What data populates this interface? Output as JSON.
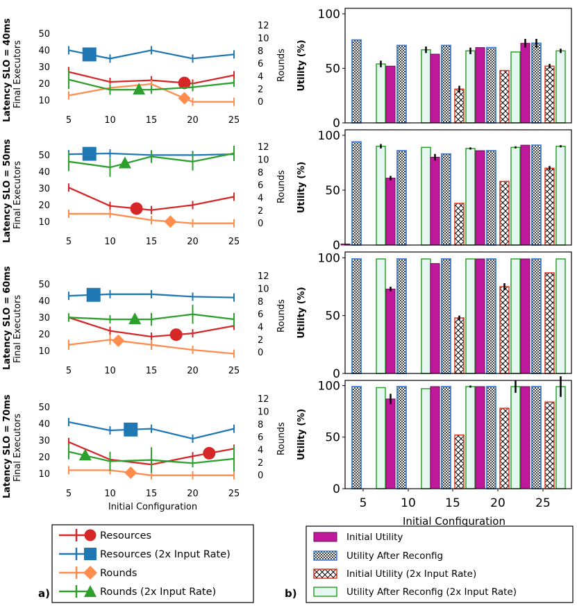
{
  "chart_data": {
    "type": "composite",
    "rows": [
      {
        "slo_label": "Latency SLO = 40ms"
      },
      {
        "slo_label": "Latency SLO = 50ms"
      },
      {
        "slo_label": "Latency SLO = 60ms"
      },
      {
        "slo_label": "Latency SLO = 70ms"
      }
    ],
    "left_panel": {
      "label": "a)",
      "type": "line",
      "x": [
        5,
        10,
        15,
        20,
        25
      ],
      "xticks": [
        "5",
        "10",
        "15",
        "20",
        "25"
      ],
      "xlabel": "Initial Configuration",
      "ylabel_left": "Final Executors",
      "ylabel_right": "Rounds",
      "ylim_left": [
        6,
        56
      ],
      "yticks_left": [
        10,
        20,
        30,
        40,
        50
      ],
      "ylim_right": [
        -0.8,
        12.3
      ],
      "yticks_right": [
        0,
        2,
        4,
        6,
        8,
        10,
        12
      ],
      "colors": {
        "resources": "#d62728",
        "resources_2x": "#1f77b4",
        "rounds": "#ff8c4d",
        "rounds_2x": "#2ca02c"
      },
      "legend": [
        "Resources",
        "Resources (2x Input Rate)",
        "Rounds",
        "Rounds (2x Input Rate)"
      ],
      "subplots": [
        {
          "resources": [
            27,
            21,
            22,
            20,
            25
          ],
          "resources_err": [
            3,
            1,
            0.5,
            0.5,
            0
          ],
          "resources_2x": [
            40,
            35,
            40,
            35,
            37.5
          ],
          "resources_2x_err": [
            1.5,
            0,
            0,
            0,
            0
          ],
          "rounds": [
            1,
            2.2,
            2.8,
            0,
            0
          ],
          "rounds_err": [
            0.6,
            0.6,
            0.5,
            0,
            0
          ],
          "rounds_2x": [
            3.5,
            1.9,
            1.9,
            2.3,
            3
          ],
          "rounds_2x_err": [
            1.5,
            0.8,
            0,
            0.6,
            0.6
          ],
          "markers": {
            "resources": 19,
            "resources_2x": 7.5,
            "rounds": 19,
            "rounds_2x": 13.5
          }
        },
        {
          "resources": [
            30.5,
            19.5,
            17,
            20,
            25
          ],
          "resources_err": [
            2,
            0,
            2,
            0,
            0
          ],
          "resources_2x": [
            50.5,
            51,
            50,
            50,
            50.5
          ],
          "resources_2x_err": [
            0,
            0.5,
            0,
            0,
            0
          ],
          "rounds": [
            1.5,
            1.5,
            0.5,
            0,
            0
          ],
          "rounds_err": [
            0.6,
            0.5,
            0.6,
            0,
            0
          ],
          "rounds_2x": [
            9.7,
            8.8,
            10.5,
            9.7,
            11
          ],
          "rounds_2x_err": [
            1.5,
            1.5,
            1,
            1.4,
            1.2
          ],
          "markers": {
            "resources": 13.2,
            "resources_2x": 7.5,
            "rounds": 17.3,
            "rounds_2x": 11.8
          }
        },
        {
          "resources": [
            30,
            22,
            18.5,
            20.5,
            25
          ],
          "resources_err": [
            0,
            0,
            0.7,
            0.7,
            0
          ],
          "resources_2x": [
            43,
            44,
            44,
            42.5,
            42
          ],
          "resources_2x_err": [
            0,
            0,
            0,
            0.5,
            0
          ],
          "rounds": [
            1.2,
            2,
            1.2,
            0.4,
            -0.2
          ],
          "rounds_err": [
            0.8,
            0.8,
            0.8,
            0.6,
            0
          ],
          "rounds_2x": [
            5.5,
            5.2,
            5.2,
            6,
            5.2
          ],
          "rounds_2x_err": [
            0,
            0.6,
            1,
            1.5,
            1
          ],
          "markers": {
            "resources": 18,
            "resources_2x": 8,
            "rounds": 11,
            "rounds_2x": 13
          }
        },
        {
          "resources": [
            29,
            18.5,
            15.5,
            20.5,
            25
          ],
          "resources_err": [
            0,
            1.5,
            1.5,
            0,
            0
          ],
          "resources_2x": [
            41,
            36,
            37,
            31,
            37
          ],
          "resources_2x_err": [
            0,
            0.5,
            0.5,
            0,
            1.5
          ],
          "rounds": [
            0.8,
            0.8,
            0,
            0,
            0
          ],
          "rounds_err": [
            0.5,
            0.5,
            0,
            0,
            0
          ],
          "rounds_2x": [
            3.7,
            2.2,
            2.4,
            1.9,
            2.6
          ],
          "rounds_2x_err": [
            1.2,
            1.5,
            2,
            0.6,
            2
          ],
          "markers": {
            "resources": 22,
            "resources_2x": 12.5,
            "rounds": 12.5,
            "rounds_2x": 7
          }
        }
      ]
    },
    "right_panel": {
      "label": "b)",
      "type": "bar",
      "categories": [
        "5",
        "10",
        "15",
        "20",
        "25"
      ],
      "xlabel": "Initial Configuration",
      "ylabel": "Utility (%)",
      "ylim": [
        0,
        105
      ],
      "yticks": [
        0,
        50,
        100
      ],
      "legend": [
        "Initial Utility",
        "Utility After Reconfig",
        "Initial Utility (2x Input Rate)",
        "Utility After Reconfig (2x Input Rate)"
      ],
      "colors": {
        "initial": "#c0189a",
        "after_border": "#3a7bd5",
        "initial_2x": "#e0331f",
        "after_2x_fill": "#e6f7f2",
        "after_2x_border": "#2ca02c",
        "error": "#000000"
      },
      "subplots": [
        {
          "initial": [
            0,
            52,
            63,
            69,
            73
          ],
          "initial_err": [
            0,
            0,
            0,
            0,
            4
          ],
          "after": [
            76,
            71,
            71,
            69,
            73
          ],
          "after_err": [
            0,
            0,
            0,
            0,
            4
          ],
          "initial_2x": [
            0,
            0,
            31,
            48,
            52
          ],
          "initial_2x_err": [
            0,
            0,
            3,
            0,
            2
          ],
          "after_2x": [
            54,
            67,
            66,
            65,
            66
          ],
          "after_2x_err": [
            3,
            3,
            3,
            0,
            2
          ]
        },
        {
          "initial": [
            1,
            61,
            80,
            86,
            91
          ],
          "initial_err": [
            0,
            2,
            3,
            0,
            0
          ],
          "after": [
            94,
            86,
            83,
            86,
            91
          ],
          "after_err": [
            0,
            0,
            0,
            0,
            0
          ],
          "initial_2x": [
            0,
            0,
            38,
            58,
            70
          ],
          "initial_2x_err": [
            0,
            0,
            0,
            0,
            2
          ],
          "after_2x": [
            90,
            89,
            88,
            89,
            90
          ],
          "after_2x_err": [
            2,
            0,
            1,
            1,
            1
          ]
        },
        {
          "initial": [
            0,
            73,
            95,
            99,
            99
          ],
          "initial_err": [
            0,
            2,
            0,
            0,
            0
          ],
          "after": [
            99,
            99,
            99,
            99,
            99
          ],
          "after_err": [
            0,
            0,
            0,
            0,
            0
          ],
          "initial_2x": [
            0,
            0,
            48,
            75,
            87
          ],
          "initial_2x_err": [
            0,
            0,
            2,
            3,
            0
          ],
          "after_2x": [
            99,
            99,
            99,
            99,
            99
          ],
          "after_2x_err": [
            0,
            0,
            0,
            0,
            0
          ]
        },
        {
          "initial": [
            0,
            87,
            99,
            99,
            99
          ],
          "initial_err": [
            0,
            5,
            0,
            0,
            0
          ],
          "after": [
            99,
            99,
            99,
            99,
            99
          ],
          "after_err": [
            0,
            0,
            0,
            0,
            0
          ],
          "initial_2x": [
            0,
            0,
            52,
            78,
            84
          ],
          "initial_2x_err": [
            0,
            0,
            0,
            0,
            0
          ],
          "after_2x": [
            98,
            97,
            99,
            99,
            99
          ],
          "after_2x_err": [
            0,
            0,
            1,
            6,
            10
          ]
        }
      ]
    }
  }
}
